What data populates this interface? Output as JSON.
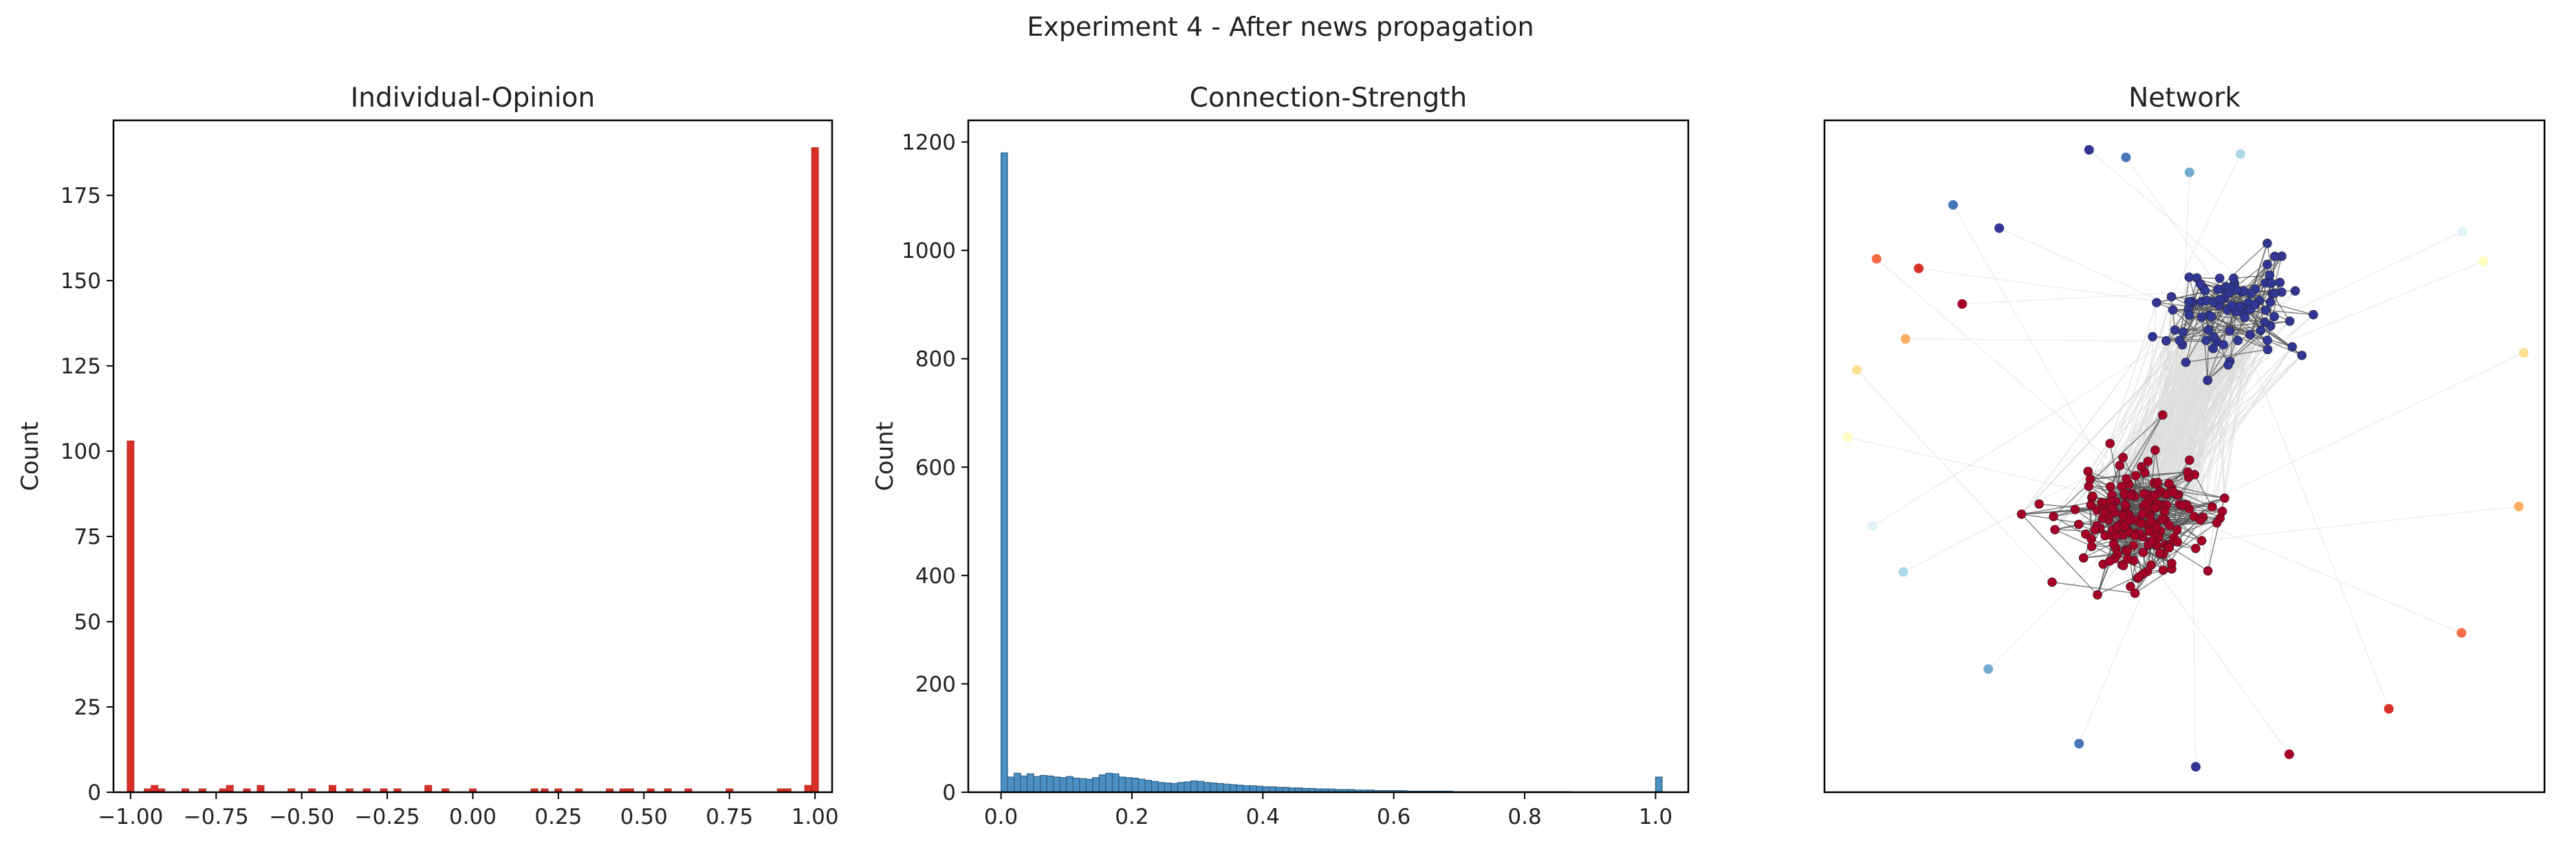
{
  "suptitle": "Experiment 4 - After news propagation",
  "chart_data": [
    {
      "type": "bar",
      "subtype": "histogram",
      "title": "Individual-Opinion",
      "xlabel": "",
      "ylabel": "Count",
      "xlim": [
        -1.05,
        1.05
      ],
      "ylim": [
        0,
        197
      ],
      "color": "#d73027",
      "bin_width": 0.02,
      "xticks": [
        -1.0,
        -0.75,
        -0.5,
        -0.25,
        0.0,
        0.25,
        0.5,
        0.75,
        1.0
      ],
      "xtick_labels": [
        "−1.00",
        "−0.75",
        "−0.50",
        "−0.25",
        "0.00",
        "0.25",
        "0.50",
        "0.75",
        "1.00"
      ],
      "yticks": [
        0,
        25,
        50,
        75,
        100,
        125,
        150,
        175
      ],
      "bins": [
        {
          "x": -1.0,
          "count": 103
        },
        {
          "x": -0.95,
          "count": 1
        },
        {
          "x": -0.93,
          "count": 2
        },
        {
          "x": -0.91,
          "count": 1
        },
        {
          "x": -0.84,
          "count": 1
        },
        {
          "x": -0.79,
          "count": 1
        },
        {
          "x": -0.73,
          "count": 1
        },
        {
          "x": -0.71,
          "count": 2
        },
        {
          "x": -0.66,
          "count": 1
        },
        {
          "x": -0.62,
          "count": 2
        },
        {
          "x": -0.53,
          "count": 1
        },
        {
          "x": -0.47,
          "count": 1
        },
        {
          "x": -0.41,
          "count": 2
        },
        {
          "x": -0.36,
          "count": 1
        },
        {
          "x": -0.31,
          "count": 1
        },
        {
          "x": -0.26,
          "count": 1
        },
        {
          "x": -0.22,
          "count": 1
        },
        {
          "x": -0.13,
          "count": 2
        },
        {
          "x": -0.08,
          "count": 1
        },
        {
          "x": 0.0,
          "count": 1
        },
        {
          "x": 0.18,
          "count": 1
        },
        {
          "x": 0.21,
          "count": 1
        },
        {
          "x": 0.25,
          "count": 1
        },
        {
          "x": 0.31,
          "count": 1
        },
        {
          "x": 0.4,
          "count": 1
        },
        {
          "x": 0.44,
          "count": 1
        },
        {
          "x": 0.46,
          "count": 1
        },
        {
          "x": 0.52,
          "count": 1
        },
        {
          "x": 0.57,
          "count": 1
        },
        {
          "x": 0.63,
          "count": 1
        },
        {
          "x": 0.75,
          "count": 1
        },
        {
          "x": 0.9,
          "count": 1
        },
        {
          "x": 0.92,
          "count": 1
        },
        {
          "x": 0.98,
          "count": 2
        },
        {
          "x": 1.0,
          "count": 189
        }
      ]
    },
    {
      "type": "bar",
      "subtype": "histogram",
      "title": "Connection-Strength",
      "xlabel": "",
      "ylabel": "Count",
      "xlim": [
        -0.05,
        1.05
      ],
      "ylim": [
        0,
        1240
      ],
      "color": "#4a90c4",
      "bin_width": 0.01,
      "xticks": [
        0.0,
        0.2,
        0.4,
        0.6,
        0.8,
        1.0
      ],
      "xtick_labels": [
        "0.0",
        "0.2",
        "0.4",
        "0.6",
        "0.8",
        "1.0"
      ],
      "yticks": [
        0,
        200,
        400,
        600,
        800,
        1000,
        1200
      ],
      "bin_start": 0.0,
      "counts": [
        1180,
        28,
        35,
        30,
        34,
        29,
        31,
        30,
        28,
        27,
        29,
        26,
        25,
        24,
        27,
        32,
        35,
        34,
        28,
        27,
        26,
        24,
        22,
        20,
        18,
        17,
        16,
        18,
        19,
        21,
        20,
        18,
        17,
        16,
        15,
        14,
        13,
        12,
        12,
        11,
        10,
        10,
        9,
        9,
        8,
        8,
        7,
        7,
        6,
        6,
        6,
        5,
        5,
        5,
        4,
        4,
        4,
        3,
        3,
        3,
        3,
        3,
        2,
        2,
        2,
        2,
        2,
        2,
        2,
        1,
        1,
        1,
        1,
        1,
        1,
        1,
        1,
        1,
        1,
        1,
        1,
        1,
        1,
        1,
        1,
        1,
        1,
        0,
        0,
        0,
        0,
        0,
        0,
        0,
        0,
        0,
        0,
        0,
        0,
        0,
        28
      ]
    },
    {
      "type": "scatter",
      "subtype": "network-graph",
      "title": "Network",
      "xlabel": "",
      "ylabel": "",
      "axes_visible": false,
      "grid": false,
      "clusters": [
        {
          "color": "#313695",
          "node_count": 90
        },
        {
          "color": "#a50026",
          "node_count": 190
        }
      ],
      "edge_color": "#555555",
      "edge_colors_faint": "#dddddd",
      "isolated_node_colors": [
        "#313695",
        "#4575b4",
        "#74add1",
        "#abd9e9",
        "#e0f3f8",
        "#ffffbf",
        "#fee090",
        "#fdae61",
        "#f46d43",
        "#d73027",
        "#a50026"
      ]
    }
  ]
}
